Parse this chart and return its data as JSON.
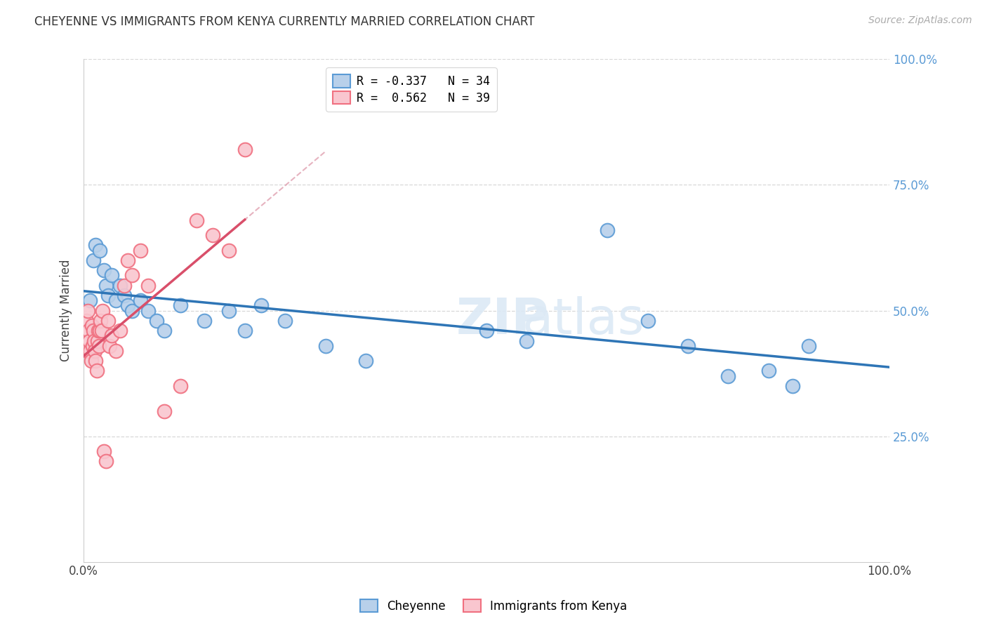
{
  "title": "CHEYENNE VS IMMIGRANTS FROM KENYA CURRENTLY MARRIED CORRELATION CHART",
  "source": "Source: ZipAtlas.com",
  "ylabel": "Currently Married",
  "legend_entry1": "R = -0.337   N = 34",
  "legend_entry2": "R =  0.562   N = 39",
  "legend_label1": "Cheyenne",
  "legend_label2": "Immigrants from Kenya",
  "blue_face_color": "#b8d0ea",
  "blue_edge_color": "#5b9bd5",
  "pink_face_color": "#f9c6cf",
  "pink_edge_color": "#f07080",
  "blue_line_color": "#2e75b6",
  "pink_line_color": "#d94f6a",
  "dash_line_color": "#e0a0b0",
  "grid_color": "#d8d8d8",
  "right_tick_color": "#5b9bd5",
  "cheyenne_x": [
    0.8,
    1.2,
    1.5,
    2.0,
    2.5,
    2.8,
    3.0,
    3.5,
    4.0,
    4.5,
    5.0,
    5.5,
    6.0,
    7.0,
    8.0,
    9.0,
    10.0,
    12.0,
    15.0,
    18.0,
    20.0,
    22.0,
    25.0,
    30.0,
    35.0,
    50.0,
    55.0,
    65.0,
    70.0,
    75.0,
    80.0,
    85.0,
    88.0,
    90.0
  ],
  "cheyenne_y": [
    52.0,
    60.0,
    63.0,
    62.0,
    58.0,
    55.0,
    53.0,
    57.0,
    52.0,
    55.0,
    53.0,
    51.0,
    50.0,
    52.0,
    50.0,
    48.0,
    46.0,
    51.0,
    48.0,
    50.0,
    46.0,
    51.0,
    48.0,
    43.0,
    40.0,
    46.0,
    44.0,
    66.0,
    48.0,
    43.0,
    37.0,
    38.0,
    35.0,
    43.0
  ],
  "kenya_x": [
    0.3,
    0.4,
    0.5,
    0.6,
    0.7,
    0.8,
    0.9,
    1.0,
    1.1,
    1.2,
    1.3,
    1.4,
    1.5,
    1.6,
    1.7,
    1.8,
    1.9,
    2.0,
    2.1,
    2.2,
    2.3,
    2.5,
    2.8,
    3.0,
    3.2,
    3.5,
    4.0,
    4.5,
    5.0,
    5.5,
    6.0,
    7.0,
    8.0,
    10.0,
    12.0,
    14.0,
    16.0,
    18.0,
    20.0
  ],
  "kenya_y": [
    48.0,
    42.0,
    50.0,
    46.0,
    44.0,
    42.0,
    40.0,
    47.0,
    43.0,
    46.0,
    44.0,
    42.0,
    40.0,
    38.0,
    44.0,
    46.0,
    43.0,
    46.0,
    48.0,
    46.0,
    50.0,
    22.0,
    20.0,
    48.0,
    43.0,
    45.0,
    42.0,
    46.0,
    55.0,
    60.0,
    57.0,
    62.0,
    55.0,
    30.0,
    35.0,
    68.0,
    65.0,
    62.0,
    82.0
  ],
  "xmin": 0.0,
  "xmax": 100.0,
  "ymin": 0.0,
  "ymax": 100.0
}
